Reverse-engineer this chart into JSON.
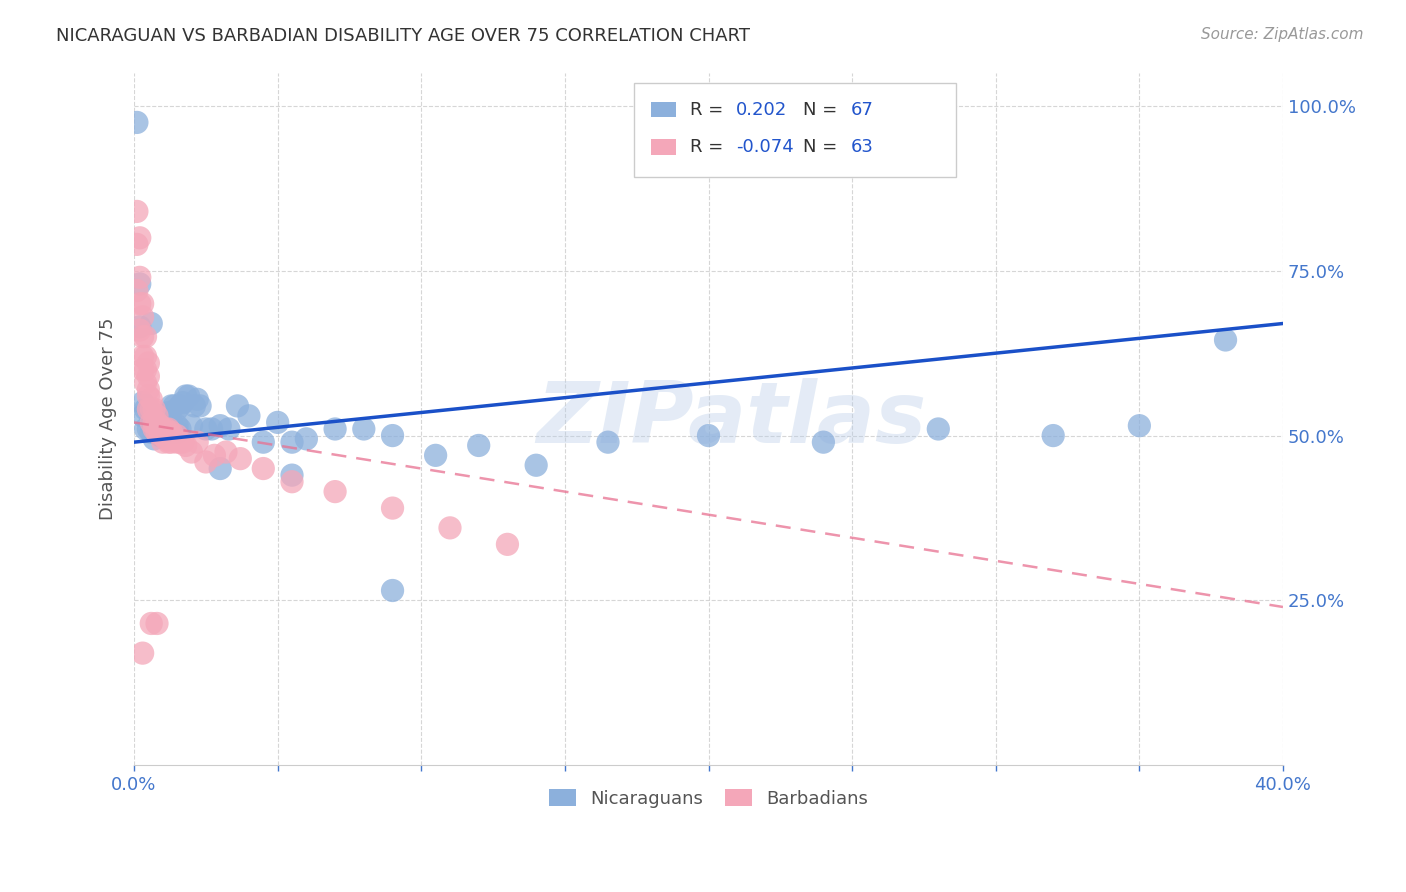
{
  "title": "NICARAGUAN VS BARBADIAN DISABILITY AGE OVER 75 CORRELATION CHART",
  "source": "Source: ZipAtlas.com",
  "ylabel": "Disability Age Over 75",
  "legend_blue_r": "0.202",
  "legend_blue_n": "67",
  "legend_pink_r": "-0.074",
  "legend_pink_n": "63",
  "legend_blue_label": "Nicaraguans",
  "legend_pink_label": "Barbadians",
  "blue_color": "#8CB0DC",
  "pink_color": "#F4A7B9",
  "blue_line_color": "#1A50C8",
  "pink_line_color": "#E87090",
  "title_color": "#333333",
  "source_color": "#999999",
  "axis_label_color": "#555555",
  "tick_color": "#4477CC",
  "watermark": "ZIPatlas",
  "blue_scatter_x": [
    0.001,
    0.002,
    0.002,
    0.003,
    0.003,
    0.004,
    0.004,
    0.005,
    0.005,
    0.006,
    0.006,
    0.007,
    0.007,
    0.007,
    0.008,
    0.008,
    0.009,
    0.009,
    0.01,
    0.01,
    0.011,
    0.011,
    0.012,
    0.012,
    0.013,
    0.013,
    0.014,
    0.014,
    0.015,
    0.015,
    0.016,
    0.016,
    0.017,
    0.018,
    0.019,
    0.02,
    0.021,
    0.022,
    0.023,
    0.025,
    0.027,
    0.03,
    0.033,
    0.036,
    0.04,
    0.045,
    0.05,
    0.055,
    0.06,
    0.07,
    0.08,
    0.09,
    0.105,
    0.12,
    0.14,
    0.165,
    0.2,
    0.24,
    0.28,
    0.32,
    0.006,
    0.35,
    0.38,
    0.015,
    0.03,
    0.055,
    0.09
  ],
  "blue_scatter_y": [
    0.975,
    0.665,
    0.73,
    0.53,
    0.55,
    0.51,
    0.54,
    0.51,
    0.54,
    0.505,
    0.53,
    0.495,
    0.53,
    0.515,
    0.505,
    0.525,
    0.5,
    0.52,
    0.505,
    0.53,
    0.505,
    0.525,
    0.51,
    0.535,
    0.52,
    0.545,
    0.505,
    0.545,
    0.515,
    0.54,
    0.51,
    0.545,
    0.55,
    0.56,
    0.56,
    0.515,
    0.545,
    0.555,
    0.545,
    0.51,
    0.51,
    0.515,
    0.51,
    0.545,
    0.53,
    0.49,
    0.52,
    0.49,
    0.495,
    0.51,
    0.51,
    0.5,
    0.47,
    0.485,
    0.455,
    0.49,
    0.5,
    0.49,
    0.51,
    0.5,
    0.67,
    0.515,
    0.645,
    0.505,
    0.45,
    0.44,
    0.265
  ],
  "pink_scatter_x": [
    0.001,
    0.001,
    0.001,
    0.002,
    0.002,
    0.002,
    0.002,
    0.003,
    0.003,
    0.003,
    0.003,
    0.003,
    0.004,
    0.004,
    0.004,
    0.004,
    0.005,
    0.005,
    0.005,
    0.005,
    0.005,
    0.006,
    0.006,
    0.006,
    0.007,
    0.007,
    0.007,
    0.008,
    0.008,
    0.008,
    0.009,
    0.009,
    0.01,
    0.01,
    0.01,
    0.011,
    0.011,
    0.012,
    0.012,
    0.013,
    0.013,
    0.014,
    0.015,
    0.016,
    0.017,
    0.018,
    0.02,
    0.022,
    0.025,
    0.028,
    0.032,
    0.037,
    0.045,
    0.055,
    0.07,
    0.09,
    0.11,
    0.13,
    0.015,
    0.01,
    0.008,
    0.006,
    0.003
  ],
  "pink_scatter_y": [
    0.84,
    0.79,
    0.72,
    0.8,
    0.74,
    0.7,
    0.66,
    0.7,
    0.68,
    0.65,
    0.62,
    0.6,
    0.65,
    0.62,
    0.6,
    0.58,
    0.61,
    0.59,
    0.57,
    0.56,
    0.54,
    0.555,
    0.54,
    0.52,
    0.54,
    0.52,
    0.51,
    0.53,
    0.52,
    0.505,
    0.515,
    0.505,
    0.51,
    0.5,
    0.49,
    0.51,
    0.495,
    0.51,
    0.49,
    0.505,
    0.49,
    0.495,
    0.49,
    0.49,
    0.49,
    0.485,
    0.475,
    0.49,
    0.46,
    0.47,
    0.475,
    0.465,
    0.45,
    0.43,
    0.415,
    0.39,
    0.36,
    0.335,
    0.5,
    0.51,
    0.215,
    0.215,
    0.17
  ]
}
